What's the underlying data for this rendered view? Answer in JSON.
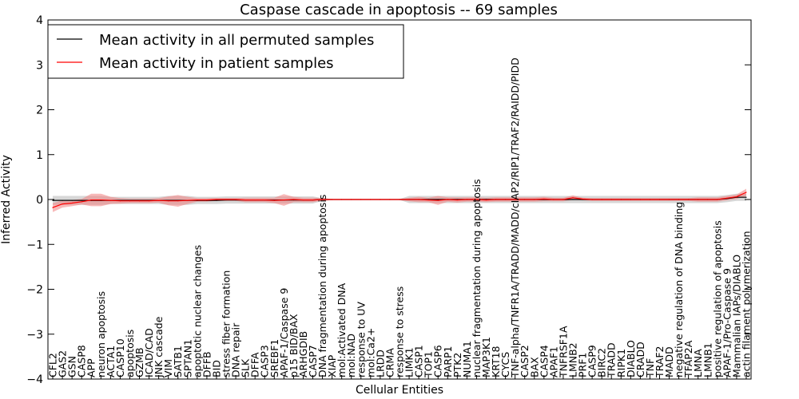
{
  "chart_data": {
    "type": "line",
    "title": "Caspase cascade in apoptosis -- 69 samples",
    "xlabel": "Cellular Entities",
    "ylabel": "Inferred Activity",
    "ylim": [
      -4,
      4
    ],
    "yticks": [
      -4,
      -3,
      -2,
      -1,
      0,
      1,
      2,
      3,
      4
    ],
    "ytick_labels": [
      "−4",
      "−3",
      "−2",
      "−1",
      "0",
      "1",
      "2",
      "3",
      "4"
    ],
    "legend_position": "top-left",
    "categories": [
      "CFL2",
      "GAS2",
      "GSN",
      "CASP8",
      "APP",
      "neuron apoptosis",
      "ACTA1",
      "CASP10",
      "apoptosis",
      "GZMB",
      "ICAD/CAD",
      "JNK cascade",
      "VIM",
      "SATB1",
      "SPTAN1",
      "apoptotic nuclear changes",
      "DFFB",
      "BID",
      "stress fiber formation",
      "DNA repair",
      "SLK",
      "DFFA",
      "CASP3",
      "SREBF1",
      "APAF-1/Caspase 9",
      "p15 BID/BAX",
      "ARHGDIB",
      "CASP7",
      "DNA fragmentation during apoptosis",
      "XIAP",
      "mol:Activated DNA",
      "mol:NAD",
      "response to UV",
      "mol:Ca2+",
      "LRDD",
      "CRMA",
      "response to stress",
      "LIMK1",
      "CASP1",
      "TOP1",
      "CASP6",
      "PARP1",
      "PTK2",
      "NUMA1",
      "nuclear fragmentation during apoptosis",
      "MAP3K1",
      "KRT18",
      "CYCS",
      "TNF-alpha/TNFR1A/TRADD/MADD/cIAP2/RIP1/TRAF2/RAIDD/PIDD",
      "CASP2",
      "BAX",
      "CASP4",
      "APAF1",
      "TNFRSF1A",
      "LMNB2",
      "PRF1",
      "CASP9",
      "BIRC2",
      "TRADD",
      "RIPK1",
      "DIABLO",
      "CRADD",
      "TNF",
      "TRAF2",
      "MADD",
      "negative regulation of DNA binding",
      "TFAP2A",
      "LMNA",
      "LMNB1",
      "positive regulation of apoptosis",
      "APAF-1/Pro-Caspase 9",
      "Mammalian IAPs/DIABLO",
      "actin filament polymerization"
    ],
    "series": [
      {
        "name": "Mean activity in all permuted samples",
        "color": "#000000",
        "band_color": "#b0b0b0",
        "values": [
          -0.02,
          -0.02,
          -0.02,
          -0.02,
          -0.02,
          -0.02,
          -0.02,
          -0.02,
          -0.02,
          -0.02,
          -0.02,
          -0.02,
          -0.02,
          -0.02,
          -0.02,
          -0.02,
          -0.02,
          -0.02,
          -0.01,
          -0.01,
          -0.01,
          -0.01,
          -0.01,
          -0.01,
          -0.01,
          -0.01,
          -0.01,
          -0.01,
          0,
          0,
          0,
          0,
          0,
          0,
          0,
          0,
          0,
          0,
          0,
          0,
          0,
          0,
          0,
          0,
          0,
          0,
          0,
          0,
          0,
          0,
          0,
          0,
          0,
          0,
          0,
          0,
          0,
          0,
          0,
          0,
          0,
          0,
          0,
          0,
          0,
          0,
          0,
          0,
          0,
          0,
          0.02,
          0.05,
          0.05
        ],
        "spread": [
          0.1,
          0.1,
          0.1,
          0.1,
          0.1,
          0.1,
          0.08,
          0.08,
          0.08,
          0.08,
          0.08,
          0.08,
          0.1,
          0.1,
          0.1,
          0.08,
          0.08,
          0.08,
          0.08,
          0.08,
          0.08,
          0.08,
          0.08,
          0.08,
          0.08,
          0.08,
          0.08,
          0.08,
          0.03,
          0.01,
          0.01,
          0.01,
          0.01,
          0.01,
          0.01,
          0.01,
          0.01,
          0.08,
          0.08,
          0.08,
          0.08,
          0.08,
          0.08,
          0.08,
          0.08,
          0.08,
          0.08,
          0.08,
          0.08,
          0.08,
          0.08,
          0.08,
          0.08,
          0.08,
          0.08,
          0.08,
          0.08,
          0.08,
          0.08,
          0.08,
          0.08,
          0.08,
          0.08,
          0.08,
          0.08,
          0.08,
          0.08,
          0.08,
          0.08,
          0.08,
          0.08,
          0.08,
          0.08
        ]
      },
      {
        "name": "Mean activity in patient samples",
        "color": "#ff0000",
        "band_color": "#f08080",
        "values": [
          -0.18,
          -0.1,
          -0.08,
          -0.05,
          -0.01,
          -0.01,
          -0.02,
          -0.03,
          -0.03,
          -0.03,
          -0.03,
          -0.02,
          -0.03,
          -0.03,
          -0.02,
          -0.01,
          -0.01,
          0,
          0,
          0,
          -0.01,
          -0.01,
          -0.01,
          -0.02,
          -0.01,
          0,
          -0.01,
          -0.01,
          0,
          0,
          0,
          0,
          0,
          0,
          0,
          0,
          0,
          0,
          0,
          -0.01,
          -0.02,
          0,
          -0.01,
          0,
          0,
          -0.01,
          0,
          0,
          0,
          0,
          0,
          0.01,
          0,
          0,
          0.04,
          0.01,
          0,
          0,
          0,
          0,
          0,
          0,
          0,
          0,
          0,
          0,
          0,
          0,
          0,
          0,
          0.03,
          0.06,
          0.16
        ],
        "spread": [
          0.1,
          0.08,
          0.07,
          0.06,
          0.14,
          0.14,
          0.08,
          0.06,
          0.05,
          0.05,
          0.05,
          0.05,
          0.1,
          0.13,
          0.08,
          0.04,
          0.04,
          0.03,
          0.03,
          0.03,
          0.05,
          0.05,
          0.05,
          0.06,
          0.13,
          0.06,
          0.05,
          0.05,
          0.03,
          0.01,
          0.01,
          0.01,
          0.01,
          0.01,
          0.01,
          0.01,
          0.01,
          0.04,
          0.06,
          0.05,
          0.1,
          0.05,
          0.06,
          0.05,
          0.05,
          0.05,
          0.05,
          0.05,
          0.05,
          0.05,
          0.05,
          0.05,
          0.04,
          0.04,
          0.05,
          0.03,
          0.03,
          0.03,
          0.03,
          0.03,
          0.03,
          0.03,
          0.03,
          0.03,
          0.03,
          0.03,
          0.03,
          0.05,
          0.05,
          0.05,
          0.05,
          0.05,
          0.08
        ]
      }
    ]
  }
}
